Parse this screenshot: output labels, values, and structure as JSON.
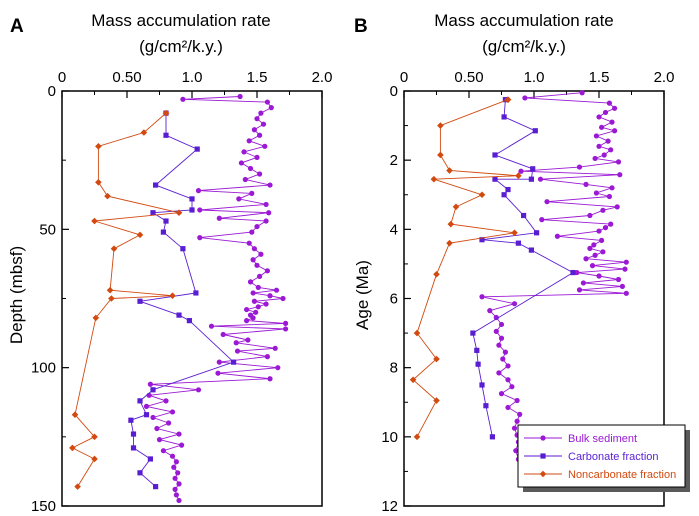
{
  "colors": {
    "bulk": "#9b19d4",
    "carbonate": "#5a1ed2",
    "noncarbonate": "#d24a10",
    "axis": "#000000"
  },
  "chart_data": [
    {
      "type": "line",
      "panel_label": "A",
      "title_line1": "Mass accumulation rate",
      "title_line2": "(g/cm²/k.y.)",
      "xlabel": "",
      "ylabel": "Depth (mbsf)",
      "xlim": [
        0,
        2.0
      ],
      "ylim": [
        0,
        150
      ],
      "y_inverted": true,
      "x_axis_position": "top",
      "xticks": [
        "0",
        "0.50",
        "1.0",
        "1.5",
        "2.0"
      ],
      "yticks": [
        "0",
        "50",
        "100",
        "150"
      ],
      "series": [
        {
          "key": "bulk",
          "x": [
            1.37,
            0.93,
            1.58,
            1.61,
            1.53,
            1.5,
            1.55,
            1.48,
            1.52,
            1.44,
            1.56,
            1.4,
            1.5,
            1.38,
            1.45,
            1.52,
            1.41,
            1.6,
            1.05,
            1.46,
            1.36,
            1.57,
            1.06,
            1.59,
            1.21,
            1.57,
            1.5,
            1.46,
            1.06,
            1.44,
            1.48,
            1.53,
            1.47,
            1.5,
            1.58,
            1.52,
            1.45,
            1.51,
            1.65,
            1.47,
            1.6,
            1.7,
            1.48,
            1.57,
            1.51,
            1.42,
            1.49,
            1.45,
            1.47,
            1.42,
            1.72,
            1.15,
            1.72,
            1.24,
            1.43,
            1.34,
            1.64,
            1.35,
            1.58,
            1.21,
            1.66,
            1.2,
            1.6,
            0.68,
            1.05,
            0.67,
            0.8,
            0.65,
            0.85,
            0.7,
            0.82,
            0.73,
            0.9,
            0.75,
            0.92,
            0.78,
            0.85,
            0.88,
            0.86,
            0.89,
            0.87,
            0.9,
            0.87,
            0.88,
            0.9
          ],
          "y": [
            2,
            3,
            4,
            6,
            8,
            10,
            12,
            14,
            16,
            18,
            20,
            22,
            24,
            26,
            28,
            30,
            32,
            34,
            36,
            37,
            39,
            41,
            43,
            44,
            46,
            47,
            49,
            51,
            53,
            55,
            57,
            59,
            61,
            63,
            65,
            67,
            69,
            71,
            72,
            73,
            74,
            75,
            76,
            77,
            78,
            79,
            80,
            81,
            82,
            83,
            84,
            85,
            86,
            88,
            90,
            91,
            93,
            94,
            96,
            98,
            100,
            102,
            104,
            106,
            108,
            110,
            112,
            114,
            116,
            118,
            120,
            122,
            124,
            126,
            128,
            130,
            132,
            134,
            136,
            138,
            140,
            142,
            144,
            146,
            148
          ]
        },
        {
          "key": "carbonate",
          "x": [
            0.8,
            0.8,
            1.04,
            0.72,
            1.0,
            1.0,
            0.7,
            0.8,
            0.78,
            0.93,
            1.03,
            0.6,
            0.9,
            0.98,
            1.32,
            0.7,
            0.6,
            0.65,
            0.53,
            0.55,
            0.55,
            0.68,
            0.6,
            0.72
          ],
          "y": [
            8,
            16,
            21,
            34,
            39,
            43,
            44,
            47,
            51,
            57,
            73,
            76,
            81,
            83,
            98,
            108,
            112,
            117,
            119,
            124,
            129,
            133,
            138,
            143
          ]
        },
        {
          "key": "noncarbonate",
          "x": [
            0.8,
            0.8,
            0.63,
            0.28,
            0.28,
            0.35,
            0.9,
            0.25,
            0.6,
            0.4,
            0.37,
            0.85,
            0.38,
            0.26,
            0.1,
            0.25,
            0.08,
            0.25,
            0.12
          ],
          "y": [
            8,
            8,
            15,
            20,
            33,
            38,
            44,
            47,
            52,
            57,
            72,
            74,
            75,
            82,
            117,
            125,
            129,
            133,
            143
          ]
        }
      ]
    },
    {
      "type": "line",
      "panel_label": "B",
      "title_line1": "Mass accumulation rate",
      "title_line2": "(g/cm²/k.y.)",
      "xlabel": "",
      "ylabel": "Age (Ma)",
      "xlim": [
        0,
        2.0
      ],
      "ylim": [
        0,
        12
      ],
      "y_inverted": true,
      "x_axis_position": "top",
      "xticks": [
        "0",
        "0.50",
        "1.0",
        "1.5",
        "2.0"
      ],
      "yticks": [
        "0",
        "2",
        "4",
        "6",
        "8",
        "10",
        "12"
      ],
      "legend_position": "bottom-right",
      "legend": [
        "Bulk sediment",
        "Carbonate fraction",
        "Noncarbonate fraction"
      ],
      "series": [
        {
          "key": "bulk",
          "x": [
            1.37,
            0.93,
            1.58,
            1.62,
            1.55,
            1.5,
            1.6,
            1.52,
            1.62,
            1.48,
            1.57,
            1.5,
            1.59,
            1.54,
            1.47,
            1.65,
            1.35,
            0.9,
            1.66,
            1.05,
            1.4,
            1.6,
            1.48,
            1.58,
            1.1,
            1.64,
            1.53,
            1.43,
            1.06,
            1.59,
            1.55,
            1.5,
            1.18,
            1.52,
            1.46,
            1.43,
            1.53,
            1.47,
            1.4,
            1.71,
            1.45,
            1.7,
            1.33,
            1.5,
            1.65,
            1.38,
            1.68,
            1.35,
            1.71,
            0.6,
            0.85,
            0.66,
            0.71,
            0.75,
            0.71,
            0.75,
            0.73,
            0.78,
            0.76,
            0.8,
            0.73,
            0.8,
            0.83,
            0.75,
            0.87,
            0.8,
            0.89,
            0.87,
            0.85,
            0.87,
            0.88,
            0.86,
            0.88
          ],
          "y": [
            0.05,
            0.2,
            0.35,
            0.5,
            0.62,
            0.75,
            0.9,
            1.05,
            1.15,
            1.3,
            1.45,
            1.6,
            1.7,
            1.85,
            1.95,
            2.05,
            2.2,
            2.32,
            2.42,
            2.55,
            2.7,
            2.8,
            2.95,
            3.05,
            3.2,
            3.35,
            3.45,
            3.6,
            3.72,
            3.85,
            3.95,
            4.05,
            4.2,
            4.32,
            4.45,
            4.55,
            4.65,
            4.75,
            4.85,
            4.95,
            5.05,
            5.15,
            5.25,
            5.35,
            5.45,
            5.55,
            5.65,
            5.75,
            5.85,
            5.95,
            6.15,
            6.35,
            6.55,
            6.75,
            6.95,
            7.15,
            7.35,
            7.55,
            7.75,
            7.95,
            8.15,
            8.35,
            8.55,
            8.75,
            8.95,
            9.15,
            9.35,
            9.55,
            9.75,
            9.95,
            10.15,
            10.4,
            10.65
          ]
        },
        {
          "key": "carbonate",
          "x": [
            0.78,
            0.77,
            1.01,
            0.7,
            0.99,
            0.98,
            0.7,
            0.8,
            0.77,
            0.92,
            1.02,
            0.6,
            0.88,
            0.98,
            1.3,
            0.53,
            0.56,
            0.57,
            0.6,
            0.63,
            0.68
          ],
          "y": [
            0.25,
            0.75,
            1.15,
            1.85,
            2.25,
            2.55,
            2.55,
            2.85,
            3.0,
            3.6,
            4.1,
            4.3,
            4.4,
            4.6,
            5.25,
            7.0,
            7.5,
            7.9,
            8.5,
            9.1,
            10.0
          ]
        },
        {
          "key": "noncarbonate",
          "x": [
            0.8,
            0.8,
            0.28,
            0.28,
            0.35,
            0.88,
            0.23,
            0.6,
            0.4,
            0.36,
            0.85,
            0.35,
            0.25,
            0.1,
            0.25,
            0.07,
            0.25,
            0.1
          ],
          "y": [
            0.25,
            0.25,
            1.0,
            1.85,
            2.3,
            2.45,
            2.55,
            3.0,
            3.35,
            3.85,
            4.1,
            4.4,
            5.3,
            7.0,
            7.75,
            8.35,
            8.95,
            10.0
          ]
        }
      ]
    }
  ]
}
